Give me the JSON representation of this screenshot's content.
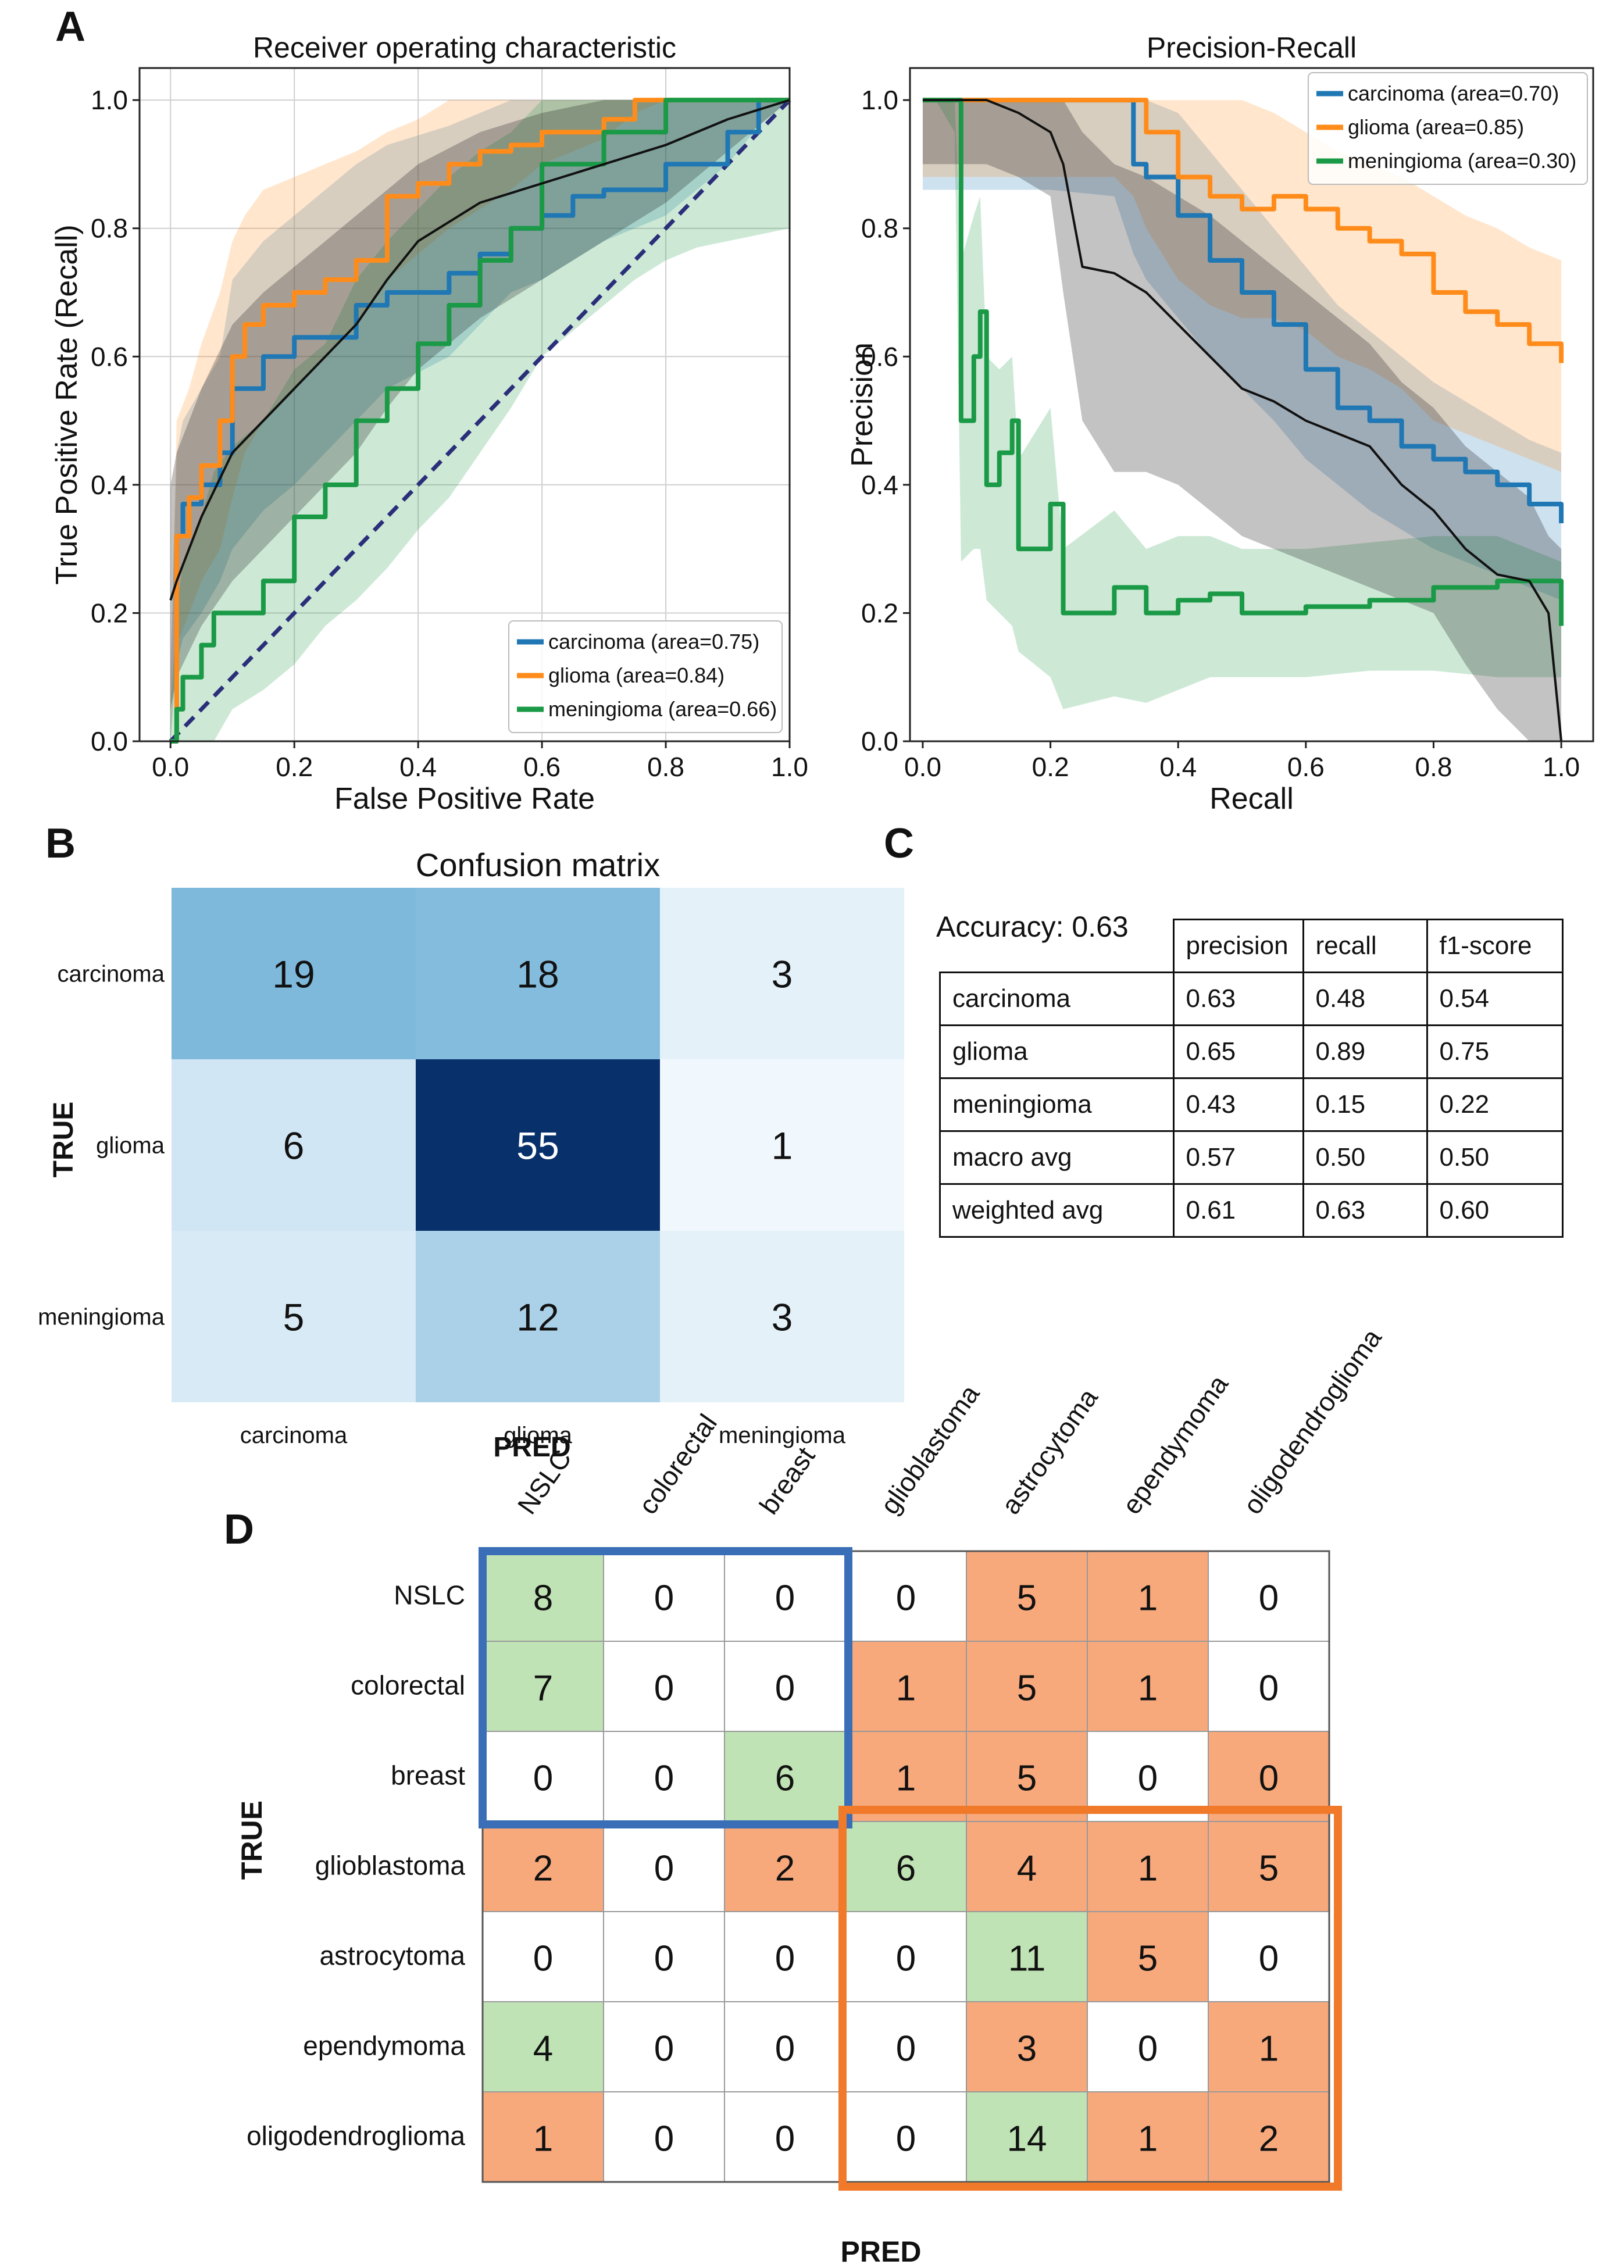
{
  "panels": {
    "A": "A",
    "B": "B",
    "C": "C",
    "D": "D"
  },
  "colors": {
    "carcinoma": "#1f77b4",
    "glioma": "#ff8c1a",
    "meningioma": "#1a9a46",
    "mean": "#111111",
    "diagonal": "#2b2f7a",
    "cm_green": "#bfe3b4",
    "cm_orange": "#f7a97c",
    "box_blue": "#3a6fb7",
    "box_orange": "#f07a2a"
  },
  "chart_data": [
    {
      "id": "roc",
      "type": "line",
      "title": "Receiver operating characteristic",
      "xlabel": "False Positive Rate",
      "ylabel": "True Positive Rate (Recall)",
      "xlim": [
        0,
        1
      ],
      "ylim": [
        0,
        1
      ],
      "ticks": [
        "0.0",
        "0.2",
        "0.4",
        "0.6",
        "0.8",
        "1.0"
      ],
      "grid": true,
      "legend_position": "bottom-right",
      "diagonal": true,
      "series": [
        {
          "name": "carcinoma (area=0.75)",
          "key": "carcinoma",
          "x": [
            0,
            0.01,
            0.02,
            0.05,
            0.08,
            0.1,
            0.15,
            0.2,
            0.25,
            0.3,
            0.35,
            0.45,
            0.5,
            0.55,
            0.6,
            0.65,
            0.7,
            0.8,
            0.9,
            0.95,
            1.0
          ],
          "y": [
            0,
            0.32,
            0.37,
            0.4,
            0.45,
            0.55,
            0.6,
            0.63,
            0.63,
            0.68,
            0.7,
            0.73,
            0.76,
            0.8,
            0.82,
            0.85,
            0.86,
            0.9,
            0.95,
            1.0,
            1.0
          ],
          "band_low": [
            0,
            0.12,
            0.16,
            0.2,
            0.25,
            0.3,
            0.36,
            0.4,
            0.45,
            0.5,
            0.55,
            0.6,
            0.65,
            0.7,
            0.72,
            0.75,
            0.78,
            0.82,
            0.9,
            0.96,
            1.0
          ],
          "band_high": [
            0.1,
            0.45,
            0.5,
            0.55,
            0.6,
            0.72,
            0.78,
            0.82,
            0.86,
            0.9,
            0.93,
            0.96,
            0.98,
            1.0,
            1.0,
            1.0,
            1.0,
            1.0,
            1.0,
            1.0,
            1.0
          ]
        },
        {
          "name": "glioma (area=0.84)",
          "key": "glioma",
          "x": [
            0,
            0.01,
            0.03,
            0.05,
            0.08,
            0.1,
            0.12,
            0.15,
            0.2,
            0.25,
            0.3,
            0.35,
            0.4,
            0.45,
            0.5,
            0.55,
            0.6,
            0.7,
            0.75,
            0.8,
            0.9,
            1.0
          ],
          "y": [
            0,
            0.32,
            0.38,
            0.43,
            0.5,
            0.6,
            0.65,
            0.68,
            0.7,
            0.72,
            0.75,
            0.85,
            0.87,
            0.9,
            0.92,
            0.93,
            0.95,
            0.97,
            1.0,
            1.0,
            1.0,
            1.0
          ],
          "band_low": [
            0,
            0.15,
            0.2,
            0.25,
            0.3,
            0.38,
            0.45,
            0.5,
            0.55,
            0.6,
            0.65,
            0.72,
            0.76,
            0.8,
            0.83,
            0.86,
            0.9,
            0.94,
            0.98,
            1.0,
            1.0,
            1.0
          ],
          "band_high": [
            0.1,
            0.5,
            0.55,
            0.62,
            0.7,
            0.78,
            0.82,
            0.86,
            0.88,
            0.9,
            0.92,
            0.95,
            0.97,
            1.0,
            1.0,
            1.0,
            1.0,
            1.0,
            1.0,
            1.0,
            1.0,
            1.0
          ]
        },
        {
          "name": "meningioma (area=0.66)",
          "key": "meningioma",
          "x": [
            0,
            0.01,
            0.02,
            0.05,
            0.07,
            0.1,
            0.15,
            0.2,
            0.25,
            0.3,
            0.35,
            0.4,
            0.45,
            0.5,
            0.55,
            0.6,
            0.65,
            0.7,
            0.75,
            0.8,
            0.85,
            0.9,
            0.95,
            1.0
          ],
          "y": [
            0,
            0.05,
            0.1,
            0.15,
            0.2,
            0.2,
            0.25,
            0.35,
            0.4,
            0.5,
            0.55,
            0.62,
            0.68,
            0.75,
            0.8,
            0.9,
            0.9,
            0.95,
            0.95,
            1.0,
            1.0,
            1.0,
            1.0,
            1.0
          ],
          "band_low": [
            0,
            0.0,
            0.0,
            0.0,
            0.0,
            0.05,
            0.08,
            0.12,
            0.18,
            0.22,
            0.27,
            0.33,
            0.38,
            0.45,
            0.52,
            0.6,
            0.64,
            0.68,
            0.72,
            0.75,
            0.77,
            0.78,
            0.79,
            0.8
          ],
          "band_high": [
            0.05,
            0.2,
            0.28,
            0.35,
            0.42,
            0.46,
            0.5,
            0.58,
            0.62,
            0.72,
            0.78,
            0.83,
            0.88,
            0.92,
            0.95,
            1.0,
            1.0,
            1.0,
            1.0,
            1.0,
            1.0,
            1.0,
            1.0,
            1.0
          ]
        },
        {
          "name": "mean",
          "key": "mean",
          "x": [
            0,
            0.01,
            0.05,
            0.1,
            0.15,
            0.2,
            0.25,
            0.3,
            0.35,
            0.4,
            0.5,
            0.6,
            0.7,
            0.8,
            0.9,
            1.0
          ],
          "y": [
            0.22,
            0.25,
            0.35,
            0.45,
            0.5,
            0.55,
            0.6,
            0.65,
            0.72,
            0.78,
            0.84,
            0.87,
            0.9,
            0.93,
            0.97,
            1.0
          ],
          "band_low": [
            0.05,
            0.1,
            0.18,
            0.25,
            0.3,
            0.35,
            0.4,
            0.45,
            0.52,
            0.58,
            0.66,
            0.72,
            0.78,
            0.84,
            0.92,
            1.0
          ],
          "band_high": [
            0.4,
            0.45,
            0.55,
            0.65,
            0.7,
            0.74,
            0.78,
            0.82,
            0.86,
            0.9,
            0.95,
            0.98,
            1.0,
            1.0,
            1.0,
            1.0
          ]
        }
      ]
    },
    {
      "id": "pr",
      "type": "line",
      "title": "Precision-Recall",
      "xlabel": "Recall",
      "ylabel": "Precision",
      "xlim": [
        0,
        1
      ],
      "ylim": [
        0,
        1
      ],
      "ticks": [
        "0.0",
        "0.2",
        "0.4",
        "0.6",
        "0.8",
        "1.0"
      ],
      "grid": false,
      "legend_position": "top-right",
      "series": [
        {
          "name": "carcinoma (area=0.70)",
          "key": "carcinoma",
          "x": [
            0,
            0.1,
            0.2,
            0.3,
            0.33,
            0.35,
            0.4,
            0.45,
            0.5,
            0.55,
            0.6,
            0.65,
            0.7,
            0.75,
            0.8,
            0.85,
            0.9,
            0.95,
            1.0
          ],
          "y": [
            1.0,
            1.0,
            1.0,
            1.0,
            0.9,
            0.88,
            0.82,
            0.75,
            0.7,
            0.65,
            0.58,
            0.52,
            0.5,
            0.46,
            0.44,
            0.42,
            0.4,
            0.37,
            0.34
          ],
          "band_low": [
            0.86,
            0.86,
            0.86,
            0.85,
            0.76,
            0.72,
            0.66,
            0.6,
            0.55,
            0.5,
            0.44,
            0.4,
            0.36,
            0.33,
            0.3,
            0.28,
            0.26,
            0.24,
            0.22
          ],
          "band_high": [
            1.0,
            1.0,
            1.0,
            1.0,
            1.0,
            1.0,
            0.98,
            0.92,
            0.86,
            0.8,
            0.74,
            0.68,
            0.64,
            0.6,
            0.56,
            0.53,
            0.5,
            0.47,
            0.45
          ]
        },
        {
          "name": "glioma (area=0.85)",
          "key": "glioma",
          "x": [
            0,
            0.1,
            0.2,
            0.3,
            0.33,
            0.35,
            0.4,
            0.45,
            0.5,
            0.55,
            0.6,
            0.65,
            0.7,
            0.75,
            0.8,
            0.85,
            0.9,
            0.95,
            1.0
          ],
          "y": [
            1.0,
            1.0,
            1.0,
            1.0,
            1.0,
            0.95,
            0.88,
            0.85,
            0.83,
            0.85,
            0.83,
            0.8,
            0.78,
            0.76,
            0.7,
            0.67,
            0.65,
            0.62,
            0.59
          ],
          "band_low": [
            0.88,
            0.88,
            0.88,
            0.88,
            0.85,
            0.8,
            0.72,
            0.68,
            0.66,
            0.66,
            0.64,
            0.6,
            0.58,
            0.55,
            0.5,
            0.48,
            0.46,
            0.44,
            0.42
          ],
          "band_high": [
            1.0,
            1.0,
            1.0,
            1.0,
            1.0,
            1.0,
            1.0,
            1.0,
            1.0,
            0.98,
            0.95,
            0.92,
            0.9,
            0.88,
            0.85,
            0.82,
            0.8,
            0.77,
            0.75
          ]
        },
        {
          "name": "meningioma (area=0.30)",
          "key": "meningioma",
          "x": [
            0,
            0.02,
            0.05,
            0.06,
            0.08,
            0.09,
            0.1,
            0.12,
            0.14,
            0.15,
            0.2,
            0.22,
            0.3,
            0.35,
            0.4,
            0.45,
            0.5,
            0.6,
            0.7,
            0.8,
            0.9,
            1.0
          ],
          "y": [
            1.0,
            1.0,
            1.0,
            0.5,
            0.6,
            0.67,
            0.4,
            0.45,
            0.5,
            0.3,
            0.37,
            0.2,
            0.24,
            0.2,
            0.22,
            0.23,
            0.2,
            0.21,
            0.22,
            0.24,
            0.25,
            0.18
          ],
          "band_low": [
            1.0,
            1.0,
            0.95,
            0.28,
            0.3,
            0.3,
            0.22,
            0.2,
            0.18,
            0.14,
            0.1,
            0.05,
            0.07,
            0.06,
            0.08,
            0.1,
            0.1,
            0.1,
            0.11,
            0.11,
            0.1,
            0.1
          ],
          "band_high": [
            1.0,
            1.0,
            1.0,
            0.75,
            0.82,
            0.85,
            0.6,
            0.58,
            0.6,
            0.44,
            0.52,
            0.3,
            0.36,
            0.3,
            0.32,
            0.32,
            0.3,
            0.3,
            0.31,
            0.32,
            0.32,
            0.28
          ]
        },
        {
          "name": "mean",
          "key": "mean",
          "x": [
            0,
            0.1,
            0.15,
            0.2,
            0.22,
            0.25,
            0.3,
            0.35,
            0.4,
            0.45,
            0.5,
            0.55,
            0.6,
            0.65,
            0.7,
            0.75,
            0.8,
            0.85,
            0.9,
            0.95,
            0.98,
            1.0
          ],
          "y": [
            1.0,
            1.0,
            0.98,
            0.95,
            0.9,
            0.74,
            0.73,
            0.7,
            0.65,
            0.6,
            0.55,
            0.53,
            0.5,
            0.48,
            0.46,
            0.4,
            0.36,
            0.3,
            0.26,
            0.25,
            0.2,
            0.0
          ],
          "band_low": [
            0.9,
            0.9,
            0.88,
            0.85,
            0.7,
            0.5,
            0.42,
            0.42,
            0.4,
            0.36,
            0.32,
            0.3,
            0.28,
            0.26,
            0.24,
            0.22,
            0.2,
            0.12,
            0.05,
            0.0,
            0.0,
            0.0
          ],
          "band_high": [
            1.0,
            1.0,
            1.0,
            1.0,
            1.0,
            0.95,
            0.9,
            0.88,
            0.85,
            0.82,
            0.78,
            0.74,
            0.7,
            0.66,
            0.62,
            0.56,
            0.52,
            0.46,
            0.42,
            0.38,
            0.32,
            0.3
          ]
        }
      ]
    },
    {
      "id": "confusion3",
      "type": "heatmap",
      "title": "Confusion matrix",
      "rows": [
        "carcinoma",
        "glioma",
        "meningioma"
      ],
      "cols": [
        "carcinoma",
        "glioma",
        "meningioma"
      ],
      "values": [
        [
          19,
          18,
          3
        ],
        [
          6,
          55,
          1
        ],
        [
          5,
          12,
          3
        ]
      ],
      "ylabel": "TRUE",
      "xlabel": "PRED",
      "vmax": 55
    },
    {
      "id": "confusion7",
      "type": "heatmap",
      "rows": [
        "NSLC",
        "colorectal",
        "breast",
        "glioblastoma",
        "astrocytoma",
        "ependymoma",
        "oligodendroglioma"
      ],
      "cols": [
        "NSLC",
        "colorectal",
        "breast",
        "glioblastoma",
        "astrocytoma",
        "ependymoma",
        "oligodendroglioma"
      ],
      "values": [
        [
          8,
          0,
          0,
          0,
          5,
          1,
          0
        ],
        [
          7,
          0,
          0,
          1,
          5,
          1,
          0
        ],
        [
          0,
          0,
          6,
          1,
          5,
          0,
          0
        ],
        [
          2,
          0,
          2,
          6,
          4,
          1,
          5
        ],
        [
          0,
          0,
          0,
          0,
          11,
          5,
          0
        ],
        [
          4,
          0,
          0,
          0,
          3,
          0,
          1
        ],
        [
          1,
          0,
          0,
          0,
          14,
          1,
          2
        ]
      ],
      "fill": [
        [
          "g",
          "w",
          "w",
          "w",
          "o",
          "o",
          "w"
        ],
        [
          "g",
          "w",
          "w",
          "o",
          "o",
          "o",
          "w"
        ],
        [
          "w",
          "w",
          "g",
          "o",
          "o",
          "w",
          "o"
        ],
        [
          "o",
          "w",
          "o",
          "g",
          "o",
          "o",
          "o"
        ],
        [
          "w",
          "w",
          "w",
          "w",
          "g",
          "o",
          "w"
        ],
        [
          "g",
          "w",
          "w",
          "w",
          "o",
          "w",
          "o"
        ],
        [
          "o",
          "w",
          "w",
          "w",
          "g",
          "o",
          "o"
        ]
      ],
      "ylabel": "TRUE",
      "xlabel": "PRED"
    }
  ],
  "metrics": {
    "accuracy": "Accuracy: 0.63",
    "headers": [
      "precision",
      "recall",
      "f1-score"
    ],
    "rows": [
      {
        "label": "carcinoma",
        "values": [
          "0.63",
          "0.48",
          "0.54"
        ]
      },
      {
        "label": "glioma",
        "values": [
          "0.65",
          "0.89",
          "0.75"
        ]
      },
      {
        "label": "meningioma",
        "values": [
          "0.43",
          "0.15",
          "0.22"
        ]
      },
      {
        "label": "macro avg",
        "values": [
          "0.57",
          "0.50",
          "0.50"
        ]
      },
      {
        "label": "weighted avg",
        "values": [
          "0.61",
          "0.63",
          "0.60"
        ]
      }
    ]
  }
}
